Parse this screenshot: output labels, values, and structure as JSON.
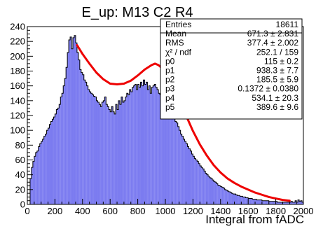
{
  "chart_data": {
    "type": "bar",
    "title": "E_up: M13 C2 R4",
    "xlabel": "Integral from fADC",
    "ylabel": "",
    "xlim": [
      0,
      2000
    ],
    "ylim": [
      0,
      240
    ],
    "x_ticks": [
      0,
      200,
      400,
      600,
      800,
      1000,
      1200,
      1400,
      1600,
      1800,
      2000
    ],
    "y_ticks": [
      0,
      20,
      40,
      60,
      80,
      100,
      120,
      140,
      160,
      180,
      200,
      220,
      240
    ],
    "bin_width": 10,
    "bin_start": 0,
    "values": [
      0,
      0,
      35,
      50,
      58,
      65,
      70,
      72,
      78,
      82,
      85,
      88,
      92,
      95,
      100,
      103,
      108,
      112,
      115,
      118,
      122,
      128,
      130,
      135,
      145,
      150,
      160,
      170,
      185,
      205,
      222,
      226,
      210,
      225,
      228,
      218,
      205,
      195,
      182,
      178,
      175,
      168,
      165,
      160,
      155,
      152,
      150,
      148,
      146,
      145,
      140,
      138,
      135,
      132,
      138,
      140,
      145,
      135,
      132,
      128,
      125,
      132,
      125,
      122,
      135,
      128,
      140,
      135,
      145,
      138,
      140,
      145,
      150,
      148,
      155,
      152,
      158,
      160,
      162,
      155,
      162,
      158,
      165,
      160,
      168,
      162,
      165,
      155,
      160,
      150,
      158,
      160,
      162,
      158,
      155,
      150,
      148,
      160,
      148,
      145,
      140,
      138,
      135,
      130,
      125,
      120,
      118,
      112,
      110,
      105,
      100,
      95,
      92,
      88,
      85,
      82,
      78,
      75,
      72,
      68,
      65,
      62,
      60,
      58,
      55,
      52,
      50,
      48,
      45,
      42,
      40,
      38,
      36,
      35,
      33,
      31,
      30,
      28,
      26,
      25,
      24,
      23,
      22,
      20,
      19,
      18,
      17,
      16,
      15,
      14,
      14,
      13,
      12,
      12,
      11,
      11,
      10,
      10,
      9,
      9,
      8,
      8,
      8,
      7,
      7,
      7,
      6,
      6,
      6,
      6,
      5,
      5,
      5,
      5,
      5,
      4,
      4,
      4,
      4,
      4,
      4,
      3,
      3,
      3,
      3,
      3,
      3,
      3,
      3,
      3,
      3,
      4,
      3,
      3,
      5,
      3,
      6,
      4,
      5,
      3
    ],
    "fit": {
      "color": "#ee0000",
      "x_range": [
        360,
        1900
      ],
      "points": [
        [
          360,
          215
        ],
        [
          400,
          203
        ],
        [
          450,
          190
        ],
        [
          500,
          178
        ],
        [
          550,
          169
        ],
        [
          600,
          163
        ],
        [
          650,
          162
        ],
        [
          700,
          163
        ],
        [
          750,
          167
        ],
        [
          800,
          174
        ],
        [
          850,
          182
        ],
        [
          900,
          188
        ],
        [
          925,
          190
        ],
        [
          950,
          188
        ],
        [
          1000,
          180
        ],
        [
          1050,
          163
        ],
        [
          1100,
          142
        ],
        [
          1150,
          120
        ],
        [
          1200,
          99
        ],
        [
          1250,
          81
        ],
        [
          1300,
          66
        ],
        [
          1350,
          53
        ],
        [
          1400,
          43
        ],
        [
          1450,
          35
        ],
        [
          1500,
          29
        ],
        [
          1550,
          24
        ],
        [
          1600,
          20
        ],
        [
          1650,
          16
        ],
        [
          1700,
          13
        ],
        [
          1750,
          10
        ],
        [
          1800,
          8
        ],
        [
          1850,
          6
        ],
        [
          1900,
          5
        ]
      ]
    },
    "bar_color": "#7b7bf0",
    "stats": {
      "rows": [
        {
          "label": "Entries",
          "value": "18611"
        },
        {
          "label": "Mean",
          "value": "671.3 ± 2.831"
        },
        {
          "label": "RMS",
          "value": "377.4 ± 2.002"
        },
        {
          "label": "χ² / ndf",
          "value": "252.1 / 159"
        },
        {
          "label": "p0",
          "value": "115 ± 0.2"
        },
        {
          "label": "p1",
          "value": "938.3 ± 7.7"
        },
        {
          "label": "p2",
          "value": "185.5 ± 5.9"
        },
        {
          "label": "p3",
          "value": "0.1372 ± 0.0380"
        },
        {
          "label": "p4",
          "value": "534.1 ± 20.3"
        },
        {
          "label": "p5",
          "value": "389.6 ± 9.6"
        }
      ]
    }
  }
}
